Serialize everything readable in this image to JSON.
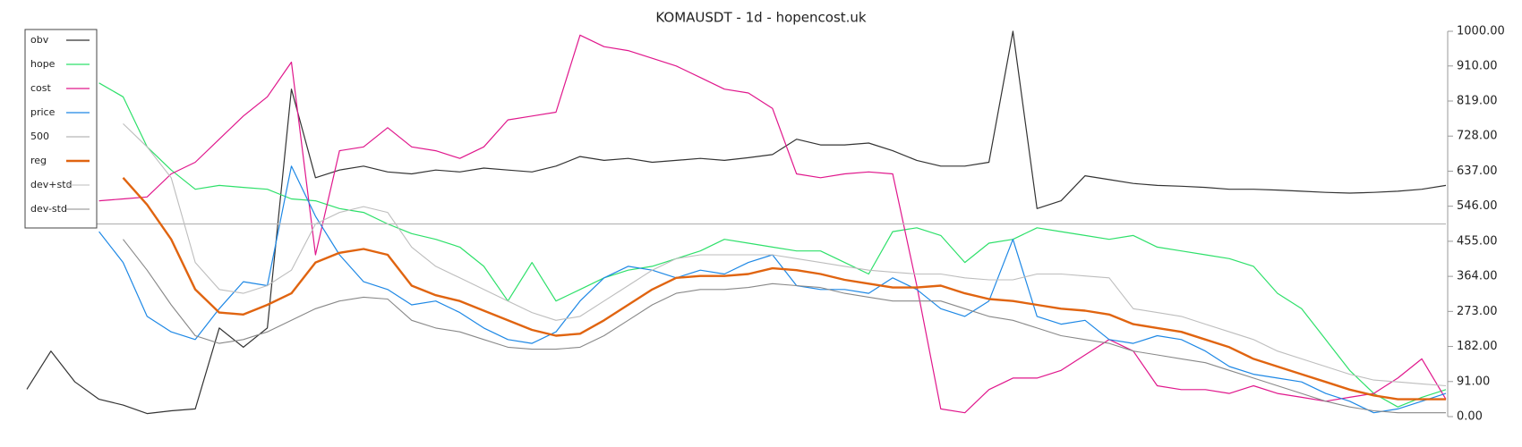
{
  "chart_data": {
    "type": "line",
    "title": "KOMAUSDT - 1d - hopencost.uk",
    "ylim": [
      0,
      1000
    ],
    "yticks": [
      {
        "value": 0,
        "label": "0.00"
      },
      {
        "value": 91,
        "label": "91.00"
      },
      {
        "value": 182,
        "label": "182.00"
      },
      {
        "value": 273,
        "label": "273.00"
      },
      {
        "value": 364,
        "label": "364.00"
      },
      {
        "value": 455,
        "label": "455.00"
      },
      {
        "value": 546,
        "label": "546.00"
      },
      {
        "value": 637,
        "label": "637.00"
      },
      {
        "value": 728,
        "label": "728.00"
      },
      {
        "value": 819,
        "label": "819.00"
      },
      {
        "value": 910,
        "label": "910.00"
      },
      {
        "value": 1000,
        "label": "1000.00"
      }
    ],
    "legend": "top-left",
    "series": [
      {
        "name": "obv",
        "color": "#333333",
        "width": 1.2,
        "values": [
          71,
          170,
          90,
          45,
          30,
          8,
          15,
          20,
          230,
          180,
          230,
          850,
          620,
          640,
          650,
          635,
          630,
          640,
          635,
          645,
          640,
          635,
          650,
          675,
          665,
          670,
          660,
          665,
          670,
          665,
          672,
          680,
          720,
          705,
          705,
          710,
          690,
          665,
          650,
          650,
          660,
          1000,
          540,
          560,
          625,
          615,
          605,
          600,
          598,
          595,
          590,
          590,
          588,
          585,
          582,
          580,
          582,
          585,
          590,
          600
        ]
      },
      {
        "name": "hope",
        "color": "#2ee06a",
        "width": 1.2,
        "values": [
          null,
          null,
          null,
          866,
          830,
          700,
          640,
          590,
          600,
          595,
          590,
          565,
          560,
          540,
          530,
          500,
          475,
          460,
          440,
          390,
          300,
          400,
          300,
          330,
          360,
          380,
          390,
          410,
          430,
          460,
          450,
          440,
          430,
          430,
          400,
          370,
          480,
          490,
          470,
          400,
          450,
          460,
          490,
          480,
          470,
          460,
          470,
          440,
          430,
          420,
          410,
          390,
          320,
          280,
          200,
          120,
          60,
          25,
          50,
          70
        ]
      },
      {
        "name": "cost",
        "color": "#e0178c",
        "width": 1.2,
        "values": [
          null,
          null,
          null,
          560,
          565,
          570,
          630,
          660,
          720,
          780,
          830,
          920,
          420,
          690,
          700,
          750,
          700,
          690,
          670,
          700,
          770,
          780,
          790,
          990,
          960,
          950,
          930,
          910,
          880,
          850,
          840,
          800,
          630,
          620,
          630,
          635,
          630,
          340,
          20,
          10,
          70,
          100,
          100,
          120,
          160,
          200,
          170,
          80,
          70,
          70,
          60,
          80,
          60,
          50,
          40,
          50,
          60,
          100,
          150,
          45
        ]
      },
      {
        "name": "price",
        "color": "#1e88e5",
        "width": 1.2,
        "values": [
          null,
          null,
          null,
          480,
          400,
          260,
          220,
          200,
          280,
          350,
          340,
          650,
          520,
          420,
          350,
          330,
          290,
          300,
          270,
          230,
          200,
          190,
          220,
          300,
          360,
          390,
          380,
          360,
          380,
          370,
          400,
          420,
          340,
          330,
          330,
          320,
          360,
          330,
          280,
          260,
          300,
          460,
          260,
          240,
          250,
          200,
          190,
          210,
          200,
          170,
          130,
          110,
          100,
          90,
          60,
          40,
          10,
          20,
          40,
          60
        ]
      },
      {
        "name": "500",
        "color": "#b8b8b8",
        "width": 1.2,
        "values": [
          500,
          500,
          500,
          500,
          500,
          500,
          500,
          500,
          500,
          500,
          500,
          500,
          500,
          500,
          500,
          500,
          500,
          500,
          500,
          500,
          500,
          500,
          500,
          500,
          500,
          500,
          500,
          500,
          500,
          500,
          500,
          500,
          500,
          500,
          500,
          500,
          500,
          500,
          500,
          500,
          500,
          500,
          500,
          500,
          500,
          500,
          500,
          500,
          500,
          500,
          500,
          500,
          500,
          500,
          500,
          500,
          500,
          500,
          500,
          500
        ]
      },
      {
        "name": "reg",
        "color": "#e06410",
        "width": 2.4,
        "values": [
          null,
          null,
          null,
          null,
          620,
          550,
          460,
          330,
          270,
          265,
          290,
          320,
          400,
          425,
          435,
          420,
          340,
          315,
          300,
          275,
          250,
          225,
          210,
          215,
          250,
          290,
          330,
          360,
          365,
          365,
          370,
          385,
          380,
          370,
          355,
          345,
          335,
          335,
          340,
          320,
          305,
          300,
          290,
          280,
          275,
          265,
          240,
          230,
          220,
          200,
          180,
          150,
          130,
          110,
          90,
          70,
          55,
          45,
          45,
          45
        ]
      },
      {
        "name": "dev+std",
        "color": "#bdbdbd",
        "width": 1.1,
        "values": [
          null,
          null,
          null,
          null,
          760,
          700,
          620,
          400,
          330,
          320,
          340,
          380,
          500,
          530,
          545,
          530,
          440,
          390,
          360,
          330,
          300,
          270,
          250,
          260,
          300,
          340,
          380,
          410,
          420,
          420,
          420,
          420,
          410,
          400,
          390,
          380,
          375,
          370,
          370,
          360,
          355,
          355,
          370,
          370,
          365,
          360,
          280,
          270,
          260,
          240,
          220,
          200,
          170,
          150,
          130,
          110,
          95,
          90,
          85,
          80
        ]
      },
      {
        "name": "dev-std",
        "color": "#888888",
        "width": 1.1,
        "values": [
          null,
          null,
          null,
          null,
          460,
          380,
          290,
          210,
          190,
          200,
          220,
          250,
          280,
          300,
          310,
          305,
          250,
          230,
          220,
          200,
          180,
          175,
          175,
          180,
          210,
          250,
          290,
          320,
          330,
          330,
          335,
          345,
          340,
          335,
          320,
          310,
          300,
          300,
          300,
          280,
          260,
          250,
          230,
          210,
          200,
          190,
          170,
          160,
          150,
          140,
          120,
          100,
          80,
          60,
          40,
          25,
          15,
          10,
          10,
          10
        ]
      }
    ]
  }
}
